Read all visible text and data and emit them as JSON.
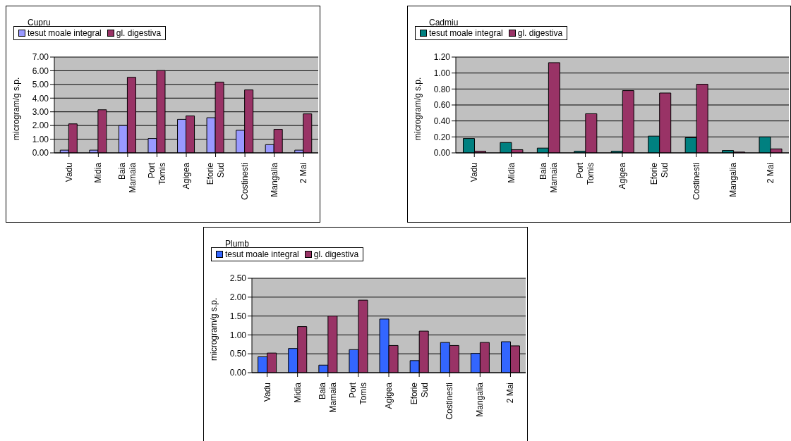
{
  "chart_data": [
    {
      "type": "bar",
      "title": "Cupru",
      "ylabel": "microgram/g s.p.",
      "categories": [
        "Vadu",
        "Midia",
        "Baia Mamaia",
        "Port Tomis",
        "Agigea",
        "Eforie Sud",
        "Costinesti",
        "Mangalia",
        "2 Mai"
      ],
      "series": [
        {
          "name": "tesut moale integral",
          "color": "#9999ff",
          "values": [
            0.2,
            0.2,
            2.0,
            1.05,
            2.45,
            2.57,
            1.65,
            0.6,
            0.2
          ]
        },
        {
          "name": "gl. digestiva",
          "color": "#993366",
          "values": [
            2.12,
            3.15,
            5.52,
            6.02,
            2.7,
            5.17,
            4.6,
            1.72,
            2.85
          ]
        }
      ],
      "ylim": [
        0,
        7
      ],
      "yticks": [
        {
          "value": 0,
          "label": "0.00"
        },
        {
          "value": 1,
          "label": "1.00"
        },
        {
          "value": 2,
          "label": "2.00"
        },
        {
          "value": 3,
          "label": "3.00"
        },
        {
          "value": 4,
          "label": "4.00"
        },
        {
          "value": 5,
          "label": "5.00"
        },
        {
          "value": 6,
          "label": "6.00"
        },
        {
          "value": 7,
          "label": "7.00"
        }
      ],
      "grid": "y",
      "legend": "top"
    },
    {
      "type": "bar",
      "title": "Cadmiu",
      "ylabel": "microgram/g s.p.",
      "categories": [
        "Vadu",
        "Midia",
        "Baia Mamaia",
        "Port Tomis",
        "Agigea",
        "Eforie Sud",
        "Costinesti",
        "Mangalia",
        "2 Mai"
      ],
      "series": [
        {
          "name": "tesut moale integral",
          "color": "#008080",
          "values": [
            0.18,
            0.13,
            0.06,
            0.02,
            0.02,
            0.21,
            0.19,
            0.03,
            0.2
          ]
        },
        {
          "name": "gl. digestiva",
          "color": "#993366",
          "values": [
            0.02,
            0.04,
            1.13,
            0.49,
            0.78,
            0.75,
            0.86,
            0.01,
            0.05
          ]
        }
      ],
      "ylim": [
        0,
        1.2
      ],
      "yticks": [
        {
          "value": 0,
          "label": "0.00"
        },
        {
          "value": 0.2,
          "label": "0.20"
        },
        {
          "value": 0.4,
          "label": "0.40"
        },
        {
          "value": 0.6,
          "label": "0.60"
        },
        {
          "value": 0.8,
          "label": "0.80"
        },
        {
          "value": 1,
          "label": "1.00"
        },
        {
          "value": 1.2,
          "label": "1.20"
        }
      ],
      "grid": "y",
      "legend": "top"
    },
    {
      "type": "bar",
      "title": "Plumb",
      "ylabel": "microgram/g s.p.",
      "categories": [
        "Vadu",
        "Midia",
        "Baia Mamaia",
        "Port Tomis",
        "Agigea",
        "Eforie Sud",
        "Costinesti",
        "Mangalia",
        "2 Mai"
      ],
      "series": [
        {
          "name": "tesut moale integral",
          "color": "#3366ff",
          "values": [
            0.42,
            0.64,
            0.2,
            0.61,
            1.42,
            0.32,
            0.8,
            0.51,
            0.82
          ]
        },
        {
          "name": "gl. digestiva",
          "color": "#993366",
          "values": [
            0.52,
            1.22,
            1.5,
            1.92,
            0.72,
            1.1,
            0.72,
            0.8,
            0.71
          ]
        }
      ],
      "ylim": [
        0,
        2.5
      ],
      "yticks": [
        {
          "value": 0,
          "label": "0.00"
        },
        {
          "value": 0.5,
          "label": "0.50"
        },
        {
          "value": 1,
          "label": "1.00"
        },
        {
          "value": 1.5,
          "label": "1.50"
        },
        {
          "value": 2,
          "label": "2.00"
        },
        {
          "value": 2.5,
          "label": "2.50"
        }
      ],
      "grid": "y",
      "legend": "top"
    }
  ]
}
